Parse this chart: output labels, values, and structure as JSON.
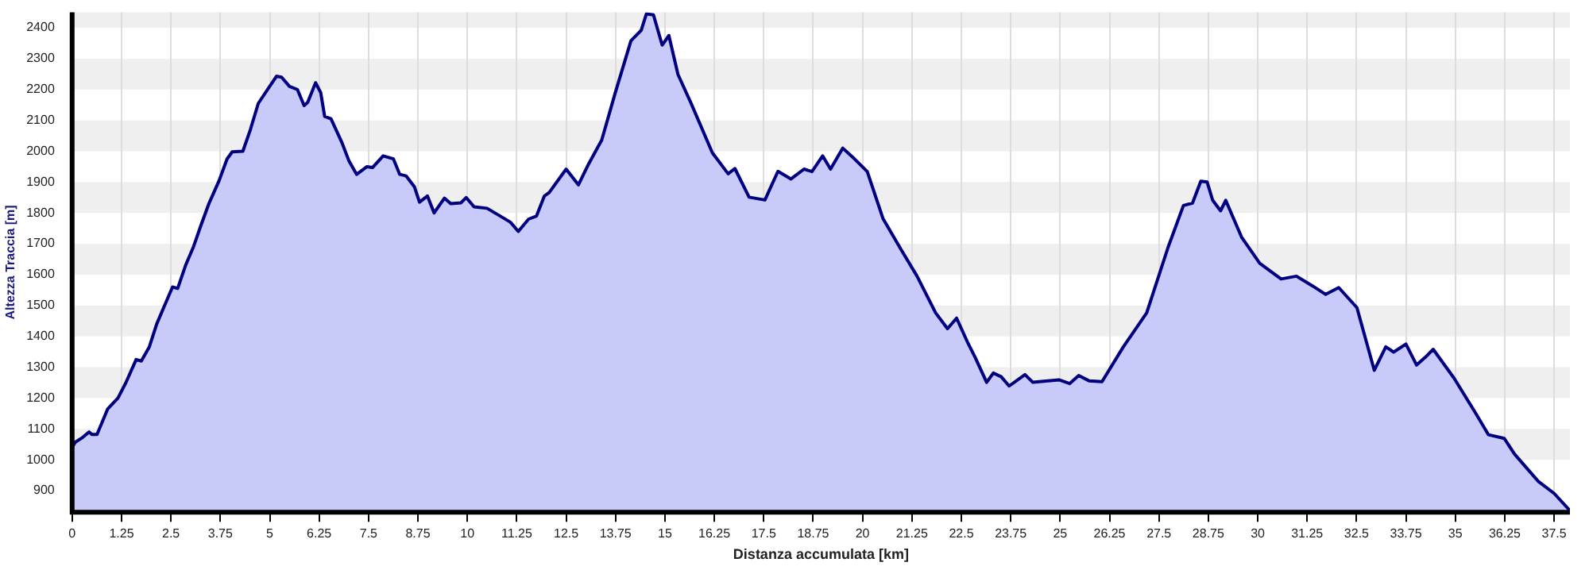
{
  "chart_data": {
    "type": "area",
    "xlabel": "Distanza accumulata [km]",
    "ylabel": "Altezza Traccia [m]",
    "xlim": [
      0,
      37.9
    ],
    "ylim": [
      830,
      2450
    ],
    "xticks": [
      0,
      1.25,
      2.5,
      3.75,
      5,
      6.25,
      7.5,
      8.75,
      10,
      11.25,
      12.5,
      13.75,
      15,
      16.25,
      17.5,
      18.75,
      20,
      21.25,
      22.5,
      23.75,
      25,
      26.25,
      27.5,
      28.75,
      30,
      31.25,
      32.5,
      33.75,
      35,
      36.25,
      37.5
    ],
    "yticks": [
      900,
      1000,
      1100,
      1200,
      1300,
      1400,
      1500,
      1600,
      1700,
      1800,
      1900,
      2000,
      2100,
      2200,
      2300,
      2400
    ],
    "grid": true,
    "legend": false,
    "series": [
      {
        "color": "#000080",
        "x": [
          0,
          0.08,
          0.24,
          0.43,
          0.5,
          0.63,
          0.9,
          1.16,
          1.36,
          1.62,
          1.75,
          1.95,
          2.14,
          2.34,
          2.54,
          2.67,
          2.87,
          3.07,
          3.26,
          3.46,
          3.72,
          3.92,
          4.05,
          4.32,
          4.51,
          4.71,
          4.97,
          5.17,
          5.3,
          5.5,
          5.7,
          5.87,
          5.96,
          6.16,
          6.29,
          6.39,
          6.55,
          6.82,
          7.0,
          7.2,
          7.46,
          7.6,
          7.87,
          8.13,
          8.29,
          8.45,
          8.66,
          8.79,
          8.99,
          9.16,
          9.42,
          9.58,
          9.84,
          9.97,
          10.17,
          10.5,
          10.83,
          11.09,
          11.29,
          11.55,
          11.75,
          11.95,
          12.07,
          12.5,
          12.81,
          13.07,
          13.4,
          13.74,
          14.14,
          14.4,
          14.53,
          14.71,
          14.93,
          15.1,
          15.33,
          15.66,
          16.2,
          16.6,
          16.77,
          17.13,
          17.53,
          17.86,
          18.19,
          18.52,
          18.72,
          18.99,
          19.19,
          19.5,
          19.79,
          20.12,
          20.52,
          20.98,
          21.38,
          21.85,
          22.15,
          22.38,
          22.65,
          22.85,
          23.14,
          23.31,
          23.51,
          23.71,
          24.11,
          24.31,
          24.97,
          25.24,
          25.47,
          25.73,
          26.06,
          26.6,
          27.19,
          27.73,
          28.12,
          28.35,
          28.56,
          28.72,
          28.86,
          29.06,
          29.19,
          29.59,
          30.05,
          30.59,
          30.98,
          31.38,
          31.72,
          32.05,
          32.51,
          32.95,
          33.24,
          33.44,
          33.75,
          34.02,
          34.24,
          34.44,
          34.97,
          35.5,
          35.84,
          36.24,
          36.5,
          37.1,
          37.5,
          37.9
        ],
        "values": [
          1040,
          1057,
          1070,
          1090,
          1082,
          1082,
          1165,
          1200,
          1250,
          1325,
          1320,
          1365,
          1440,
          1500,
          1560,
          1555,
          1630,
          1690,
          1760,
          1830,
          1905,
          1975,
          1998,
          2000,
          2070,
          2155,
          2205,
          2243,
          2240,
          2210,
          2200,
          2148,
          2158,
          2222,
          2190,
          2113,
          2105,
          2030,
          1970,
          1925,
          1950,
          1947,
          1985,
          1975,
          1925,
          1920,
          1885,
          1835,
          1855,
          1800,
          1848,
          1830,
          1833,
          1850,
          1820,
          1815,
          1790,
          1770,
          1740,
          1780,
          1790,
          1855,
          1866,
          1942,
          1891,
          1959,
          2036,
          2188,
          2358,
          2392,
          2445,
          2442,
          2344,
          2375,
          2249,
          2156,
          1995,
          1927,
          1944,
          1851,
          1842,
          1935,
          1910,
          1942,
          1934,
          1985,
          1942,
          2010,
          1976,
          1934,
          1781,
          1680,
          1595,
          1476,
          1425,
          1459,
          1383,
          1332,
          1251,
          1281,
          1269,
          1239,
          1276,
          1251,
          1259,
          1247,
          1273,
          1256,
          1253,
          1366,
          1476,
          1688,
          1824,
          1832,
          1903,
          1900,
          1841,
          1807,
          1841,
          1722,
          1637,
          1586,
          1595,
          1564,
          1536,
          1558,
          1493,
          1290,
          1366,
          1349,
          1375,
          1307,
          1332,
          1358,
          1264,
          1154,
          1081,
          1069,
          1018,
          930,
          891,
          835
        ]
      }
    ]
  }
}
